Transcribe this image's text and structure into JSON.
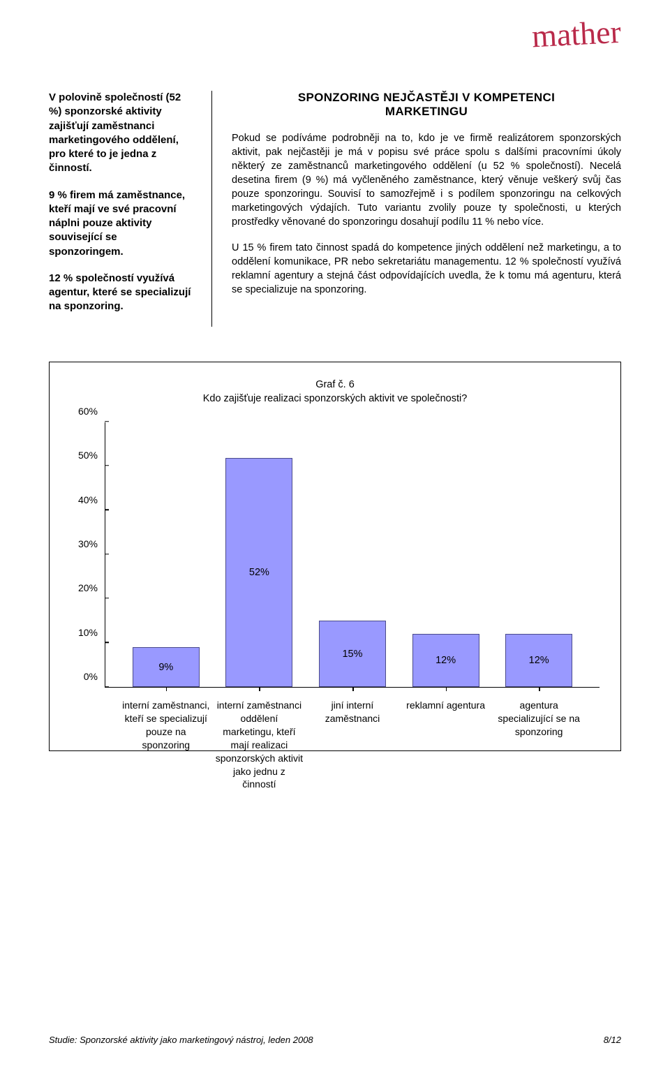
{
  "logo_text": "mather",
  "logo_color": "#b92a4a",
  "sidebar": {
    "p1": "V polovině společností (52 %) sponzorské aktivity zajišťují zaměstnanci marketingového oddělení, pro které to je jedna z činností.",
    "p2": "9 % firem má zaměstnance, kteří mají ve své pracovní náplni pouze aktivity související se sponzoringem.",
    "p3": "12 % společností využívá agentur, které se specializují na sponzoring."
  },
  "main": {
    "heading_line1": "SPONZORING NEJČASTĚJI V KOMPETENCI",
    "heading_line2": "MARKETINGU",
    "para1": "Pokud se podíváme podrobněji na to, kdo je ve firmě realizátorem sponzorských aktivit, pak nejčastěji je má v popisu své práce spolu s dalšími pracovními úkoly některý ze zaměstnanců marketingového oddělení (u 52 % společností). Necelá desetina firem (9 %) má vyčleněného zaměstnance, který věnuje veškerý svůj čas pouze sponzoringu. Souvisí to samozřejmě i s podílem sponzoringu na celkových marketingových výdajích. Tuto variantu zvolily pouze ty společnosti, u kterých prostředky věnované do sponzoringu dosahují podílu 11 % nebo více.",
    "para2": "U 15 % firem tato činnost spadá do kompetence jiných oddělení než marketingu, a to oddělení komunikace, PR nebo sekretariátu managementu. 12 % společností využívá reklamní agentury a stejná část odpovídajících uvedla, že k tomu má agenturu, která se specializuje na sponzoring."
  },
  "chart": {
    "title_line1": "Graf č. 6",
    "title_line2": "Kdo zajišťuje realizaci sponzorských aktivit ve společnosti?",
    "type": "bar",
    "ylim": [
      0,
      60
    ],
    "ytick_step": 10,
    "yticks": [
      "0%",
      "10%",
      "20%",
      "30%",
      "40%",
      "50%",
      "60%"
    ],
    "bar_color": "#9999ff",
    "bar_border": "#4a4a8a",
    "bars": [
      {
        "value": 9,
        "label": "9%",
        "xlabel": "interní zaměstnanci, kteří se specializují pouze na sponzoring"
      },
      {
        "value": 52,
        "label": "52%",
        "xlabel": "interní zaměstnanci oddělení marketingu, kteří mají realizaci sponzorských aktivit jako jednu z činností"
      },
      {
        "value": 15,
        "label": "15%",
        "xlabel": "jiní interní zaměstnanci"
      },
      {
        "value": 12,
        "label": "12%",
        "xlabel": "reklamní agentura"
      },
      {
        "value": 12,
        "label": "12%",
        "xlabel": "agentura specializující se na sponzoring"
      }
    ]
  },
  "footer": {
    "left": "Studie: Sponzorské aktivity jako marketingový nástroj, leden 2008",
    "right": "8/12"
  }
}
